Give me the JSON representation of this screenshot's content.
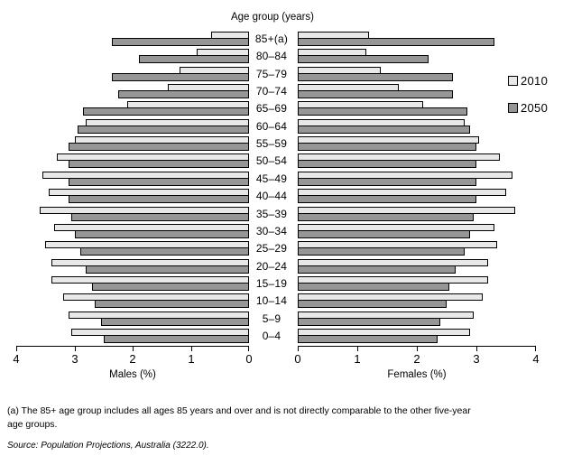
{
  "title": "Age group (years)",
  "legend": {
    "items": [
      {
        "label": "2010",
        "color": "#e8e8e8"
      },
      {
        "label": "2050",
        "color": "#969696"
      }
    ]
  },
  "axes": {
    "male": {
      "title": "Males (%)",
      "ticks": [
        "4",
        "3",
        "2",
        "1",
        "0"
      ]
    },
    "female": {
      "title": "Females (%)",
      "ticks": [
        "0",
        "1",
        "2",
        "3",
        "4"
      ]
    }
  },
  "notes": {
    "footnote_line1": "(a) The 85+ age group includes all ages 85 years and over and is not directly comparable to the other five-year",
    "footnote_line2": "age groups.",
    "source": "Source: Population Projections, Australia (3222.0)."
  },
  "chart_data": {
    "type": "bar",
    "subtype": "population-pyramid",
    "orientation": "horizontal",
    "unit": "percent",
    "xlim": [
      0,
      4
    ],
    "grid": false,
    "legend_position": "right",
    "categories": [
      "85+(a)",
      "80–84",
      "75–79",
      "70–74",
      "65–69",
      "60–64",
      "55–59",
      "50–54",
      "45–49",
      "40–44",
      "35–39",
      "30–34",
      "25–29",
      "20–24",
      "15–19",
      "10–14",
      "5–9",
      "0–4"
    ],
    "series": [
      {
        "name": "Males 2010",
        "side": "left",
        "year": "2010",
        "color": "#e8e8e8",
        "values": [
          0.65,
          0.9,
          1.2,
          1.4,
          2.1,
          2.8,
          3.0,
          3.3,
          3.55,
          3.45,
          3.6,
          3.35,
          3.5,
          3.4,
          3.4,
          3.2,
          3.1,
          3.05
        ]
      },
      {
        "name": "Males 2050",
        "side": "left",
        "year": "2050",
        "color": "#969696",
        "values": [
          2.35,
          1.9,
          2.35,
          2.25,
          2.85,
          2.95,
          3.1,
          3.1,
          3.1,
          3.1,
          3.05,
          3.0,
          2.9,
          2.8,
          2.7,
          2.65,
          2.55,
          2.5
        ]
      },
      {
        "name": "Females 2010",
        "side": "right",
        "year": "2010",
        "color": "#e8e8e8",
        "values": [
          1.2,
          1.15,
          1.4,
          1.7,
          2.1,
          2.8,
          3.05,
          3.4,
          3.6,
          3.5,
          3.65,
          3.3,
          3.35,
          3.2,
          3.2,
          3.1,
          2.95,
          2.9
        ]
      },
      {
        "name": "Females 2050",
        "side": "right",
        "year": "2050",
        "color": "#969696",
        "values": [
          3.3,
          2.2,
          2.6,
          2.6,
          2.85,
          2.9,
          3.0,
          3.0,
          3.0,
          3.0,
          2.95,
          2.9,
          2.8,
          2.65,
          2.55,
          2.5,
          2.4,
          2.35
        ]
      }
    ]
  }
}
